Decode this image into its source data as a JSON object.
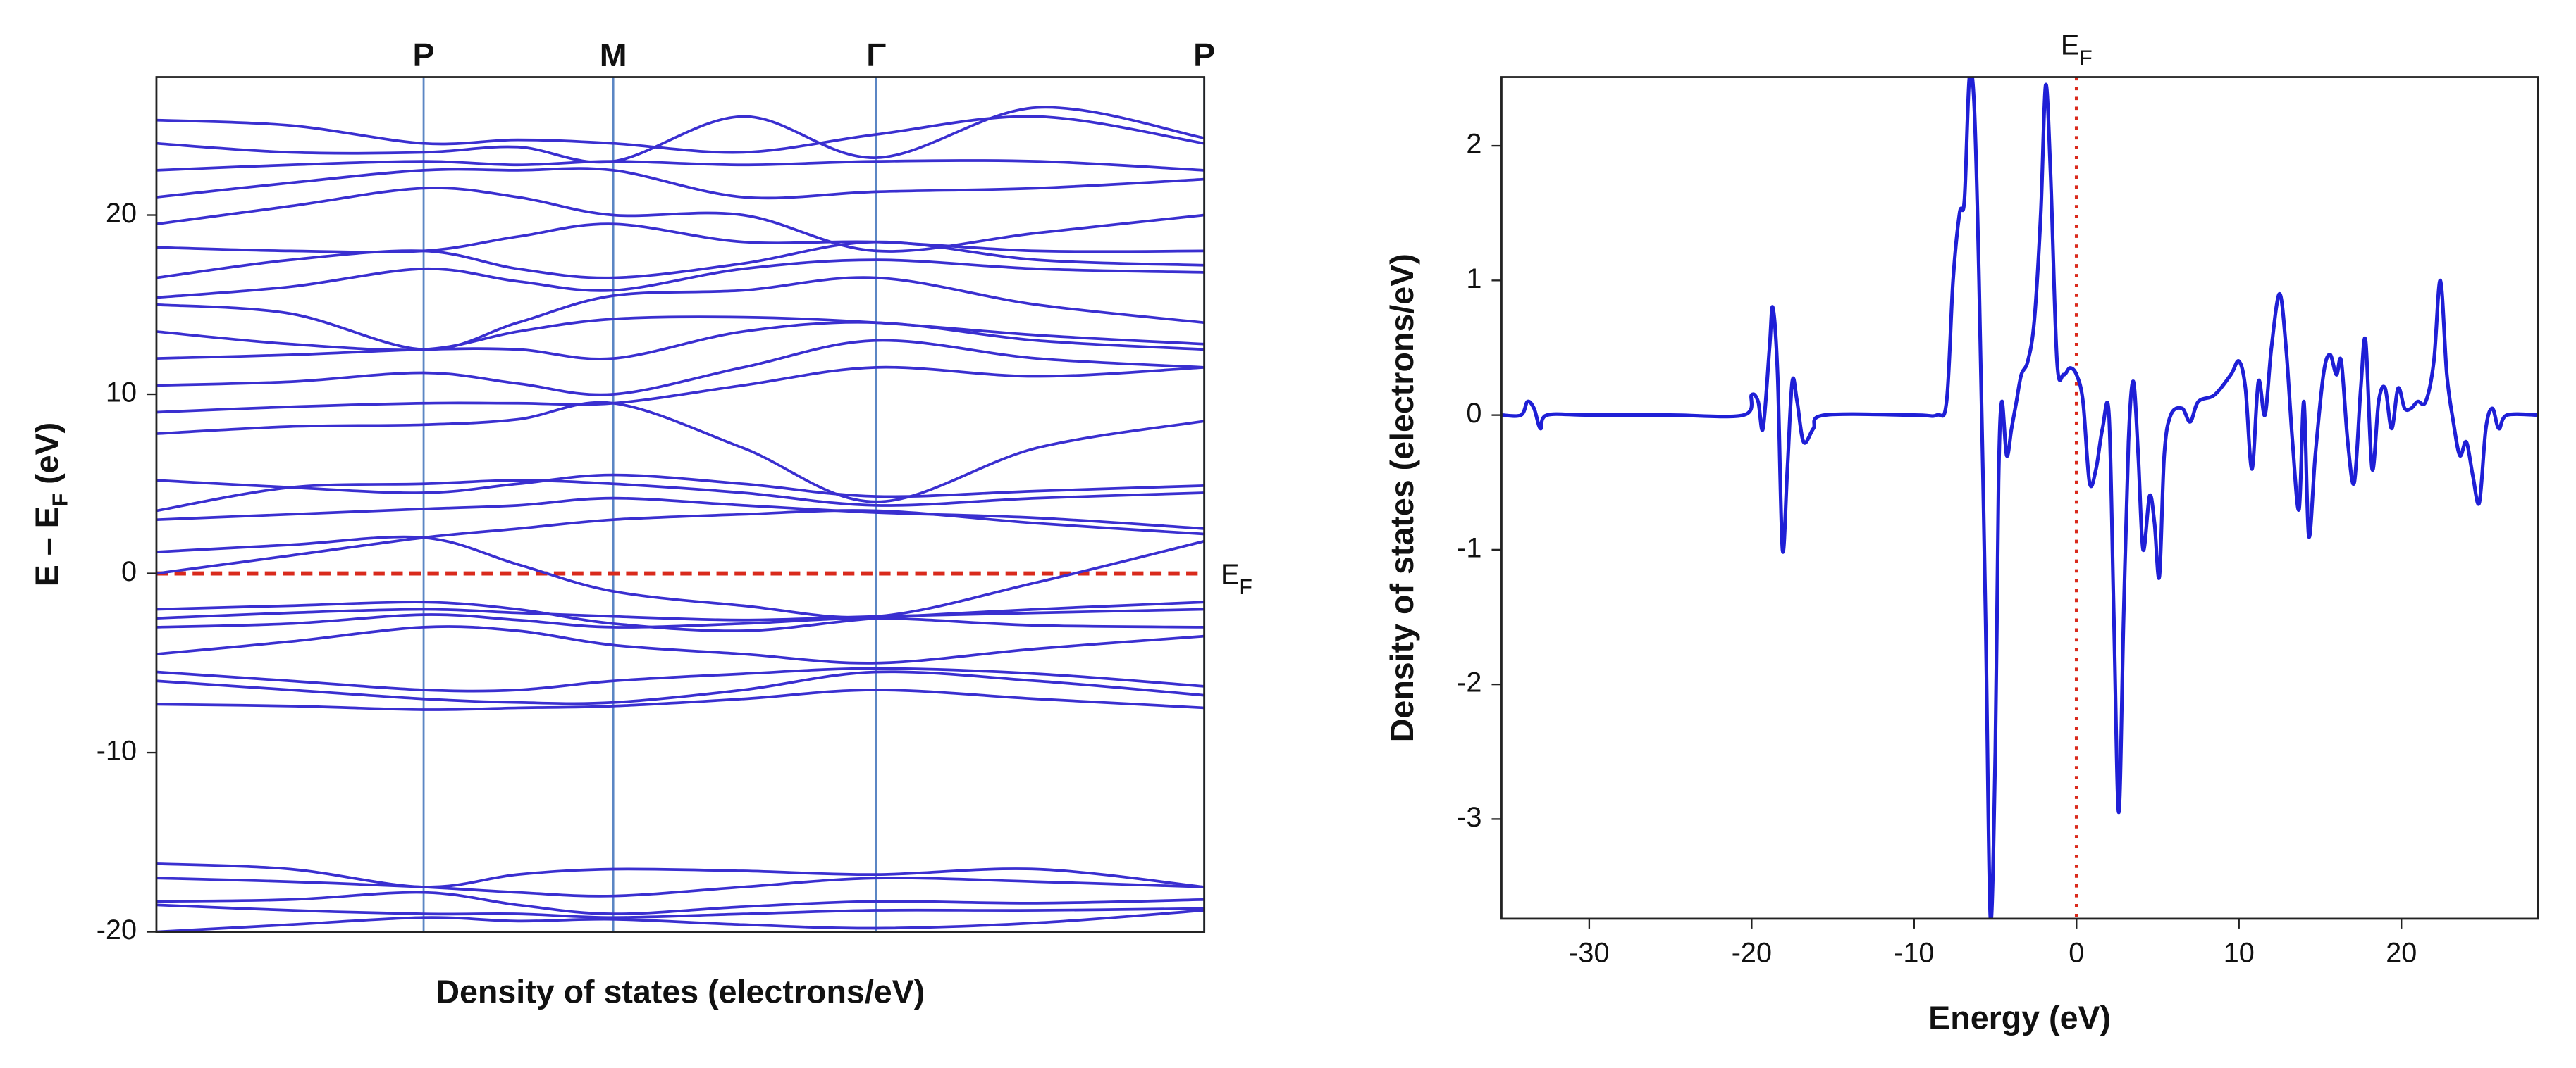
{
  "chart_data": [
    {
      "type": "line",
      "xticks": [
        {
          "value": 0.255,
          "label": "P"
        },
        {
          "value": 0.436,
          "label": "M"
        },
        {
          "value": 0.687,
          "label": "Γ"
        },
        {
          "value": 1.0,
          "label": "P"
        }
      ],
      "xlim": [
        0,
        1
      ],
      "ylim": [
        -20,
        27.7
      ],
      "yticks": [
        -20,
        -10,
        0,
        10,
        20
      ],
      "xlabel": "Density of states (electrons/eV)",
      "ylabel": [
        "E – E",
        "F",
        " (eV)"
      ],
      "annotation": [
        "E",
        "F"
      ],
      "hline": 0,
      "hline_color": "#d92a1c",
      "color": "#3a2fd0",
      "kline_color": "#5b86c4",
      "x": [
        0,
        0.128,
        0.255,
        0.345,
        0.436,
        0.56,
        0.687,
        0.84,
        1.0
      ],
      "series": [
        {
          "values": [
            -16.2,
            -16.5,
            -17.5,
            -16.8,
            -16.5,
            -16.6,
            -16.8,
            -16.5,
            -17.5
          ]
        },
        {
          "values": [
            -17.0,
            -17.2,
            -17.5,
            -17.8,
            -18.0,
            -17.5,
            -17.0,
            -17.2,
            -17.5
          ]
        },
        {
          "values": [
            -18.3,
            -18.2,
            -17.8,
            -18.5,
            -19.0,
            -18.6,
            -18.3,
            -18.4,
            -18.2
          ]
        },
        {
          "values": [
            -18.5,
            -18.8,
            -19.0,
            -19.0,
            -19.2,
            -19.0,
            -18.8,
            -18.8,
            -18.7
          ]
        },
        {
          "values": [
            -20.0,
            -19.6,
            -19.2,
            -19.4,
            -19.3,
            -19.6,
            -19.8,
            -19.5,
            -18.8
          ]
        },
        {
          "values": [
            -7.3,
            -7.4,
            -7.6,
            -7.5,
            -7.4,
            -7.0,
            -6.5,
            -7.0,
            -7.5
          ]
        },
        {
          "values": [
            -6.0,
            -6.5,
            -7.0,
            -7.2,
            -7.2,
            -6.5,
            -5.5,
            -6.0,
            -6.8
          ]
        },
        {
          "values": [
            -5.5,
            -6.0,
            -6.5,
            -6.5,
            -6.0,
            -5.6,
            -5.3,
            -5.6,
            -6.3
          ]
        },
        {
          "values": [
            -4.5,
            -3.8,
            -3.0,
            -3.2,
            -4.0,
            -4.5,
            -5.0,
            -4.2,
            -3.5
          ]
        },
        {
          "values": [
            -3.0,
            -2.8,
            -2.3,
            -2.6,
            -3.0,
            -2.8,
            -2.5,
            -2.9,
            -3.0
          ]
        },
        {
          "values": [
            -2.5,
            -2.2,
            -2.0,
            -2.2,
            -2.4,
            -2.6,
            -2.4,
            -2.2,
            -2.0
          ]
        },
        {
          "values": [
            -2.0,
            -1.8,
            -1.6,
            -2.0,
            -2.8,
            -3.2,
            -2.5,
            -2.0,
            -1.6
          ]
        },
        {
          "values": [
            1.2,
            1.6,
            2.0,
            0.5,
            -1.0,
            -1.8,
            -2.4,
            -0.5,
            1.8
          ]
        },
        {
          "values": [
            0,
            1.0,
            2.0,
            2.5,
            3.0,
            3.3,
            3.5,
            2.8,
            2.2
          ]
        },
        {
          "values": [
            3.0,
            3.3,
            3.6,
            3.8,
            4.2,
            3.8,
            3.4,
            3.1,
            2.5
          ]
        },
        {
          "values": [
            5.2,
            4.8,
            4.5,
            5.0,
            5.5,
            5.0,
            4.3,
            4.6,
            4.9
          ]
        },
        {
          "values": [
            3.5,
            4.8,
            5.0,
            5.2,
            5.0,
            4.5,
            3.8,
            4.2,
            4.5
          ]
        },
        {
          "values": [
            7.8,
            8.2,
            8.3,
            8.6,
            9.5,
            7.0,
            4.0,
            7.0,
            8.5
          ]
        },
        {
          "values": [
            9.0,
            9.3,
            9.5,
            9.5,
            9.5,
            10.5,
            11.5,
            11.0,
            11.5
          ]
        },
        {
          "values": [
            10.5,
            10.7,
            11.2,
            10.6,
            10.0,
            11.5,
            13.0,
            12.0,
            11.5
          ]
        },
        {
          "values": [
            12.0,
            12.2,
            12.5,
            12.5,
            12.0,
            13.5,
            14.0,
            13.0,
            12.5
          ]
        },
        {
          "values": [
            13.5,
            12.8,
            12.5,
            13.5,
            14.2,
            14.3,
            14.0,
            13.3,
            12.8
          ]
        },
        {
          "values": [
            15.0,
            14.5,
            12.5,
            14.0,
            15.5,
            15.8,
            16.5,
            15.0,
            14.0
          ]
        },
        {
          "values": [
            15.4,
            16.0,
            17.0,
            16.3,
            15.8,
            17.0,
            17.5,
            17.0,
            16.8
          ]
        },
        {
          "values": [
            16.5,
            17.5,
            18.0,
            17.0,
            16.5,
            17.3,
            18.5,
            17.5,
            17.2
          ]
        },
        {
          "values": [
            18.2,
            18.0,
            18.0,
            18.8,
            19.5,
            18.5,
            18.5,
            18.0,
            18.0
          ]
        },
        {
          "values": [
            19.5,
            20.5,
            21.5,
            21.0,
            20.0,
            20.0,
            18.0,
            19.0,
            20.0
          ]
        },
        {
          "values": [
            21.0,
            21.8,
            22.5,
            22.5,
            22.5,
            21.0,
            21.3,
            21.5,
            22.0
          ]
        },
        {
          "values": [
            22.5,
            22.8,
            23.0,
            22.8,
            23.0,
            22.8,
            23.0,
            23.0,
            22.5
          ]
        },
        {
          "values": [
            24.0,
            23.5,
            23.5,
            23.8,
            23.0,
            25.5,
            23.2,
            26.0,
            24.3
          ]
        },
        {
          "values": [
            25.3,
            25.0,
            24.0,
            24.2,
            24.0,
            23.5,
            24.5,
            25.5,
            24.0
          ]
        }
      ]
    },
    {
      "type": "line",
      "xlim": [
        -35.4,
        28.4
      ],
      "xticks": [
        -30,
        -20,
        -10,
        0,
        10,
        20
      ],
      "ylim": [
        -3.74,
        2.51
      ],
      "yticks": [
        -3,
        -2,
        -1,
        0,
        1,
        2
      ],
      "xlabel": "Energy (eV)",
      "ylabel": "Density of states (electrons/eV)",
      "annotation": [
        "E",
        "F"
      ],
      "vline": 0,
      "vline_color": "#d92a1c",
      "color": "#1f1fd6",
      "x": [
        -35.4,
        -34.2,
        -33.8,
        -33.4,
        -33.0,
        -32.6,
        -30,
        -25,
        -20.5,
        -20.0,
        -19.6,
        -19.3,
        -18.9,
        -18.7,
        -18.4,
        -18.1,
        -17.8,
        -17.5,
        -17.2,
        -16.8,
        -16.2,
        -15.5,
        -10,
        -8.6,
        -8.0,
        -7.6,
        -7.2,
        -6.9,
        -6.6,
        -6.3,
        -6.0,
        -5.6,
        -5.3,
        -5.0,
        -4.8,
        -4.6,
        -4.3,
        -4.0,
        -3.7,
        -3.4,
        -3.0,
        -2.6,
        -2.2,
        -1.9,
        -1.6,
        -1.2,
        -0.8,
        -0.4,
        0,
        0.4,
        0.8,
        1.2,
        1.6,
        2.0,
        2.3,
        2.6,
        2.9,
        3.2,
        3.5,
        3.8,
        4.1,
        4.5,
        4.8,
        5.1,
        5.4,
        5.8,
        6.5,
        7.0,
        7.5,
        8.5,
        9.5,
        10.0,
        10.4,
        10.8,
        11.2,
        11.6,
        12.0,
        12.5,
        12.9,
        13.3,
        13.7,
        14.0,
        14.3,
        14.7,
        15.2,
        15.6,
        16.0,
        16.3,
        16.7,
        17.1,
        17.5,
        17.8,
        18.2,
        18.6,
        19.0,
        19.4,
        19.8,
        20.2,
        20.6,
        21.0,
        21.5,
        22.0,
        22.4,
        22.8,
        23.2,
        23.6,
        24.0,
        24.4,
        24.8,
        25.2,
        25.6,
        26.0,
        26.5,
        28.4
      ],
      "values": [
        0,
        0,
        0.1,
        0.05,
        -0.1,
        0,
        0,
        0,
        0,
        0.15,
        0.1,
        -0.1,
        0.5,
        0.8,
        0.3,
        -1.0,
        -0.4,
        0.25,
        0.1,
        -0.2,
        -0.1,
        0,
        0,
        0,
        0.1,
        1.0,
        1.5,
        1.6,
        2.5,
        2.3,
        1.0,
        -1.5,
        -3.74,
        -2.5,
        -0.5,
        0.1,
        -0.3,
        -0.1,
        0.1,
        0.3,
        0.4,
        0.7,
        1.5,
        2.45,
        1.8,
        0.4,
        0.3,
        0.35,
        0.3,
        0.1,
        -0.5,
        -0.4,
        -0.1,
        0.0,
        -1.5,
        -2.95,
        -1.5,
        -0.2,
        0.25,
        -0.3,
        -1.0,
        -0.6,
        -0.8,
        -1.2,
        -0.3,
        0,
        0.05,
        -0.05,
        0.1,
        0.15,
        0.3,
        0.4,
        0.2,
        -0.4,
        0.25,
        0.0,
        0.5,
        0.9,
        0.5,
        -0.2,
        -0.7,
        0.1,
        -0.9,
        -0.3,
        0.3,
        0.45,
        0.3,
        0.4,
        -0.2,
        -0.5,
        0.2,
        0.55,
        -0.4,
        0.1,
        0.2,
        -0.1,
        0.2,
        0.05,
        0.05,
        0.1,
        0.1,
        0.4,
        1.0,
        0.3,
        -0.05,
        -0.3,
        -0.2,
        -0.45,
        -0.65,
        -0.1,
        0.05,
        -0.1,
        0,
        0
      ]
    }
  ]
}
